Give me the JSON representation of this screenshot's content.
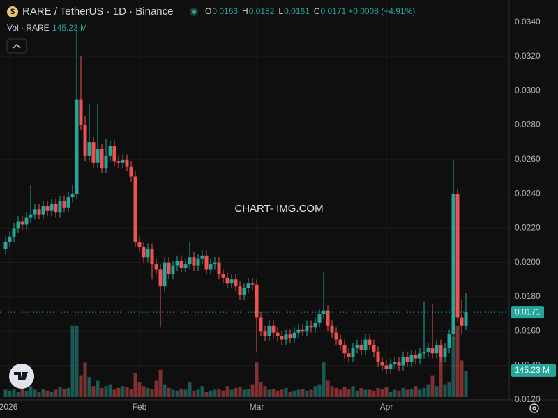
{
  "chart_data": {
    "type": "candlestick",
    "title": "RARE / TetherUS · 1D · Binance",
    "ohlc_labels": [
      "O",
      "H",
      "L",
      "C"
    ],
    "change": "+0.0008 (+4.91%)",
    "volume_title": "Vol · RARE",
    "volume_label": "145.23 M",
    "watermark": "CHART- IMG.COM",
    "up_color": "#26a69a",
    "down_color": "#ef5350",
    "grid": true,
    "xlim": [
      -1,
      120
    ],
    "xticks": [
      {
        "value": 1,
        "label": "2026"
      },
      {
        "value": 32,
        "label": "Feb"
      },
      {
        "value": 60,
        "label": "Mar"
      },
      {
        "value": 91,
        "label": "Apr"
      }
    ],
    "ylim": [
      0.01195,
      0.03407
    ],
    "yticks": [
      {
        "value": 0.012,
        "label": "0.0120"
      },
      {
        "value": 0.014,
        "label": "0.0140"
      },
      {
        "value": 0.016,
        "label": "0.0160"
      },
      {
        "value": 0.018,
        "label": "0.0180"
      },
      {
        "value": 0.02,
        "label": "0.0200"
      },
      {
        "value": 0.022,
        "label": "0.0220"
      },
      {
        "value": 0.024,
        "label": "0.0240"
      },
      {
        "value": 0.026,
        "label": "0.0260"
      },
      {
        "value": 0.028,
        "label": "0.0280"
      },
      {
        "value": 0.03,
        "label": "0.0300"
      },
      {
        "value": 0.032,
        "label": "0.0320"
      },
      {
        "value": 0.034,
        "label": "0.0340"
      }
    ],
    "volume_ylim": [
      0,
      2060
    ],
    "open": [
      0.0208,
      0.0212,
      0.0215,
      0.022,
      0.0224,
      0.0222,
      0.0226,
      0.0228,
      0.0231,
      0.0228,
      0.0233,
      0.023,
      0.0234,
      0.0229,
      0.0236,
      0.0232,
      0.0238,
      0.024,
      0.0295,
      0.028,
      0.0262,
      0.027,
      0.0258,
      0.0266,
      0.0255,
      0.0262,
      0.0268,
      0.0259,
      0.0258,
      0.026,
      0.0256,
      0.025,
      0.0212,
      0.0209,
      0.0203,
      0.0208,
      0.0199,
      0.0196,
      0.0186,
      0.02,
      0.0193,
      0.0198,
      0.0201,
      0.0197,
      0.0199,
      0.0203,
      0.0198,
      0.0202,
      0.0204,
      0.0196,
      0.0199,
      0.02,
      0.0193,
      0.0191,
      0.0188,
      0.019,
      0.0186,
      0.0181,
      0.0185,
      0.0188,
      0.0187,
      0.0168,
      0.016,
      0.0157,
      0.0163,
      0.0159,
      0.0157,
      0.0155,
      0.0158,
      0.0156,
      0.0159,
      0.0161,
      0.016,
      0.0163,
      0.0162,
      0.0165,
      0.017,
      0.0172,
      0.0163,
      0.0159,
      0.0155,
      0.0152,
      0.0147,
      0.0145,
      0.015,
      0.0152,
      0.0149,
      0.0155,
      0.0152,
      0.0148,
      0.0142,
      0.014,
      0.0138,
      0.0141,
      0.0142,
      0.014,
      0.0145,
      0.0142,
      0.0146,
      0.0144,
      0.0147,
      0.0148,
      0.015,
      0.0147,
      0.0152,
      0.0145,
      0.015,
      0.0158,
      0.024,
      0.0168,
      0.0163
    ],
    "high": [
      0.0215,
      0.0218,
      0.0223,
      0.0227,
      0.0227,
      0.0229,
      0.0245,
      0.0234,
      0.0234,
      0.0236,
      0.0236,
      0.0237,
      0.0237,
      0.0239,
      0.0239,
      0.0241,
      0.0245,
      0.0335,
      0.032,
      0.0285,
      0.0292,
      0.0273,
      0.0292,
      0.0269,
      0.0272,
      0.0271,
      0.0271,
      0.0262,
      0.0263,
      0.0263,
      0.0259,
      0.0253,
      0.0215,
      0.0212,
      0.0211,
      0.0211,
      0.0202,
      0.0199,
      0.0203,
      0.0203,
      0.0201,
      0.0204,
      0.0204,
      0.0202,
      0.0212,
      0.0206,
      0.0205,
      0.0207,
      0.0207,
      0.0202,
      0.0203,
      0.0203,
      0.0196,
      0.0194,
      0.0193,
      0.0193,
      0.0189,
      0.0188,
      0.0191,
      0.0191,
      0.019,
      0.0171,
      0.0163,
      0.0166,
      0.0166,
      0.0162,
      0.016,
      0.0161,
      0.0161,
      0.0162,
      0.0164,
      0.0164,
      0.0166,
      0.0166,
      0.0168,
      0.0173,
      0.0194,
      0.0175,
      0.0166,
      0.0162,
      0.0158,
      0.0155,
      0.015,
      0.0153,
      0.0155,
      0.0155,
      0.0158,
      0.0158,
      0.0155,
      0.0151,
      0.0145,
      0.0143,
      0.0144,
      0.0145,
      0.0145,
      0.0148,
      0.0148,
      0.0149,
      0.0149,
      0.015,
      0.0177,
      0.0153,
      0.0176,
      0.0155,
      0.0155,
      0.0153,
      0.0161,
      0.026,
      0.0243,
      0.0178,
      0.0182
    ],
    "low": [
      0.0205,
      0.0209,
      0.0212,
      0.0217,
      0.0219,
      0.0219,
      0.0223,
      0.0225,
      0.0225,
      0.0225,
      0.0227,
      0.0227,
      0.0226,
      0.0226,
      0.0229,
      0.0229,
      0.0235,
      0.0237,
      0.0277,
      0.0259,
      0.0259,
      0.0255,
      0.0255,
      0.0252,
      0.0252,
      0.0259,
      0.0256,
      0.0255,
      0.0255,
      0.0253,
      0.0247,
      0.0209,
      0.0206,
      0.02,
      0.02,
      0.019,
      0.0193,
      0.0162,
      0.0183,
      0.019,
      0.019,
      0.0195,
      0.0194,
      0.0194,
      0.0196,
      0.0195,
      0.0195,
      0.0199,
      0.0193,
      0.0193,
      0.0196,
      0.019,
      0.0188,
      0.0185,
      0.0185,
      0.0183,
      0.0178,
      0.0178,
      0.0182,
      0.0184,
      0.0148,
      0.0157,
      0.0154,
      0.0154,
      0.0156,
      0.0154,
      0.0152,
      0.0152,
      0.0153,
      0.0153,
      0.0156,
      0.0157,
      0.0157,
      0.0159,
      0.0159,
      0.0162,
      0.0167,
      0.016,
      0.0156,
      0.0152,
      0.0149,
      0.0144,
      0.0142,
      0.0142,
      0.0147,
      0.0146,
      0.0146,
      0.0149,
      0.0145,
      0.0139,
      0.0137,
      0.0135,
      0.0135,
      0.0138,
      0.0137,
      0.0137,
      0.0139,
      0.0139,
      0.0141,
      0.0141,
      0.0144,
      0.0145,
      0.0144,
      0.0144,
      0.0142,
      0.0142,
      0.0147,
      0.0155,
      0.0165,
      0.0158,
      0.0161
    ],
    "close": [
      0.0212,
      0.0215,
      0.022,
      0.0224,
      0.0222,
      0.0226,
      0.0228,
      0.0231,
      0.0228,
      0.0233,
      0.023,
      0.0234,
      0.0229,
      0.0236,
      0.0232,
      0.0238,
      0.024,
      0.0295,
      0.028,
      0.0262,
      0.027,
      0.0258,
      0.0266,
      0.0255,
      0.0262,
      0.0268,
      0.0259,
      0.0258,
      0.026,
      0.0256,
      0.025,
      0.0212,
      0.0209,
      0.0203,
      0.0208,
      0.0199,
      0.0196,
      0.0186,
      0.02,
      0.0193,
      0.0198,
      0.0201,
      0.0197,
      0.0199,
      0.0203,
      0.0198,
      0.0202,
      0.0204,
      0.0196,
      0.0199,
      0.02,
      0.0193,
      0.0191,
      0.0188,
      0.019,
      0.0186,
      0.0181,
      0.0185,
      0.0188,
      0.0187,
      0.0168,
      0.016,
      0.0157,
      0.0163,
      0.0159,
      0.0157,
      0.0155,
      0.0158,
      0.0156,
      0.0159,
      0.0161,
      0.016,
      0.0163,
      0.0162,
      0.0165,
      0.017,
      0.0172,
      0.0163,
      0.0159,
      0.0155,
      0.0152,
      0.0147,
      0.0145,
      0.015,
      0.0152,
      0.0149,
      0.0155,
      0.0152,
      0.0148,
      0.0142,
      0.014,
      0.0138,
      0.0141,
      0.0142,
      0.014,
      0.0145,
      0.0142,
      0.0146,
      0.0144,
      0.0147,
      0.0148,
      0.015,
      0.0147,
      0.0152,
      0.0145,
      0.015,
      0.0158,
      0.024,
      0.0168,
      0.0163,
      0.0171
    ],
    "volume": [
      40,
      35,
      45,
      30,
      50,
      35,
      60,
      40,
      30,
      45,
      35,
      30,
      40,
      55,
      45,
      50,
      390,
      390,
      120,
      190,
      110,
      60,
      90,
      50,
      60,
      70,
      40,
      50,
      60,
      55,
      45,
      130,
      80,
      60,
      50,
      45,
      90,
      150,
      70,
      50,
      40,
      35,
      45,
      40,
      80,
      35,
      40,
      60,
      30,
      35,
      40,
      45,
      35,
      60,
      40,
      50,
      55,
      40,
      45,
      70,
      190,
      80,
      60,
      40,
      45,
      35,
      40,
      50,
      30,
      35,
      40,
      45,
      35,
      40,
      60,
      70,
      190,
      90,
      60,
      50,
      40,
      55,
      45,
      60,
      35,
      50,
      40,
      40,
      35,
      50,
      45,
      55,
      30,
      40,
      35,
      50,
      40,
      45,
      60,
      40,
      50,
      70,
      120,
      60,
      220,
      70,
      80,
      330,
      390,
      200,
      145.23
    ]
  }
}
